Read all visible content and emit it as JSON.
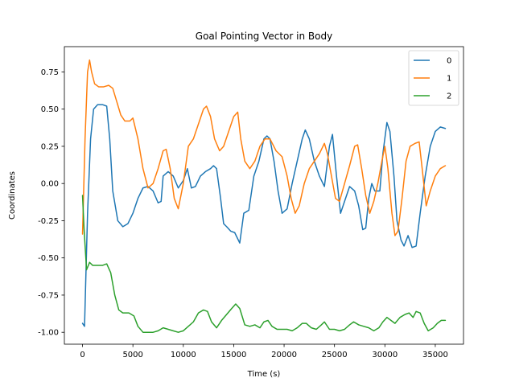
{
  "chart_data": {
    "type": "line",
    "title": "Goal Pointing Vector in Body",
    "xlabel": "Time (s)",
    "ylabel": "Coordinates",
    "xlim": [
      -1800,
      37800
    ],
    "ylim": [
      -1.08,
      0.92
    ],
    "xticks": [
      0,
      5000,
      10000,
      15000,
      20000,
      25000,
      30000,
      35000
    ],
    "yticks": [
      -1.0,
      -0.75,
      -0.5,
      -0.25,
      0.0,
      0.25,
      0.5,
      0.75
    ],
    "grid": false,
    "legend_position": "top-right",
    "series": [
      {
        "name": "0",
        "color": "#1f77b4",
        "points": [
          [
            0,
            -0.94
          ],
          [
            200,
            -0.96
          ],
          [
            500,
            -0.2
          ],
          [
            800,
            0.3
          ],
          [
            1100,
            0.5
          ],
          [
            1500,
            0.53
          ],
          [
            2000,
            0.53
          ],
          [
            2400,
            0.52
          ],
          [
            2700,
            0.3
          ],
          [
            3000,
            -0.05
          ],
          [
            3500,
            -0.25
          ],
          [
            4000,
            -0.29
          ],
          [
            4500,
            -0.27
          ],
          [
            5000,
            -0.2
          ],
          [
            5500,
            -0.1
          ],
          [
            6000,
            -0.03
          ],
          [
            6500,
            -0.02
          ],
          [
            7000,
            -0.05
          ],
          [
            7500,
            -0.13
          ],
          [
            7800,
            -0.12
          ],
          [
            8000,
            0.05
          ],
          [
            8500,
            0.08
          ],
          [
            9000,
            0.05
          ],
          [
            9500,
            -0.03
          ],
          [
            10000,
            0.02
          ],
          [
            10400,
            0.1
          ],
          [
            10800,
            -0.03
          ],
          [
            11200,
            -0.02
          ],
          [
            11700,
            0.05
          ],
          [
            12200,
            0.08
          ],
          [
            12700,
            0.1
          ],
          [
            13000,
            0.12
          ],
          [
            13300,
            0.1
          ],
          [
            13700,
            -0.1
          ],
          [
            14000,
            -0.27
          ],
          [
            14300,
            -0.29
          ],
          [
            14700,
            -0.32
          ],
          [
            15100,
            -0.33
          ],
          [
            15600,
            -0.4
          ],
          [
            16000,
            -0.2
          ],
          [
            16500,
            -0.18
          ],
          [
            17000,
            0.05
          ],
          [
            17500,
            0.15
          ],
          [
            18000,
            0.3
          ],
          [
            18300,
            0.32
          ],
          [
            18600,
            0.3
          ],
          [
            19000,
            0.15
          ],
          [
            19400,
            -0.05
          ],
          [
            19800,
            -0.2
          ],
          [
            20300,
            -0.17
          ],
          [
            20800,
            0.0
          ],
          [
            21300,
            0.15
          ],
          [
            21800,
            0.3
          ],
          [
            22100,
            0.36
          ],
          [
            22500,
            0.3
          ],
          [
            23000,
            0.15
          ],
          [
            23500,
            0.05
          ],
          [
            24000,
            -0.02
          ],
          [
            24500,
            0.25
          ],
          [
            24800,
            0.33
          ],
          [
            25200,
            0.05
          ],
          [
            25600,
            -0.2
          ],
          [
            26000,
            -0.12
          ],
          [
            26500,
            -0.02
          ],
          [
            27000,
            -0.05
          ],
          [
            27400,
            -0.15
          ],
          [
            27800,
            -0.31
          ],
          [
            28100,
            -0.3
          ],
          [
            28400,
            -0.1
          ],
          [
            28700,
            0.0
          ],
          [
            29000,
            -0.05
          ],
          [
            29500,
            -0.05
          ],
          [
            29800,
            0.2
          ],
          [
            30200,
            0.41
          ],
          [
            30500,
            0.35
          ],
          [
            30900,
            0.05
          ],
          [
            31200,
            -0.25
          ],
          [
            31600,
            -0.38
          ],
          [
            31900,
            -0.42
          ],
          [
            32300,
            -0.35
          ],
          [
            32700,
            -0.43
          ],
          [
            33100,
            -0.42
          ],
          [
            33500,
            -0.2
          ],
          [
            34000,
            0.05
          ],
          [
            34500,
            0.25
          ],
          [
            35000,
            0.35
          ],
          [
            35500,
            0.38
          ],
          [
            36000,
            0.37
          ]
        ]
      },
      {
        "name": "1",
        "color": "#ff7f0e",
        "points": [
          [
            0,
            -0.34
          ],
          [
            250,
            0.3
          ],
          [
            500,
            0.75
          ],
          [
            700,
            0.83
          ],
          [
            900,
            0.75
          ],
          [
            1200,
            0.67
          ],
          [
            1600,
            0.65
          ],
          [
            2100,
            0.65
          ],
          [
            2600,
            0.66
          ],
          [
            3000,
            0.64
          ],
          [
            3400,
            0.55
          ],
          [
            3800,
            0.46
          ],
          [
            4200,
            0.42
          ],
          [
            4700,
            0.42
          ],
          [
            5000,
            0.44
          ],
          [
            5500,
            0.3
          ],
          [
            6000,
            0.1
          ],
          [
            6500,
            -0.03
          ],
          [
            7000,
            0.0
          ],
          [
            7500,
            0.1
          ],
          [
            8000,
            0.22
          ],
          [
            8300,
            0.23
          ],
          [
            8700,
            0.1
          ],
          [
            9100,
            -0.1
          ],
          [
            9500,
            -0.17
          ],
          [
            10000,
            0.0
          ],
          [
            10500,
            0.25
          ],
          [
            11000,
            0.3
          ],
          [
            11500,
            0.4
          ],
          [
            12000,
            0.5
          ],
          [
            12300,
            0.52
          ],
          [
            12700,
            0.45
          ],
          [
            13100,
            0.3
          ],
          [
            13600,
            0.22
          ],
          [
            14000,
            0.25
          ],
          [
            14500,
            0.35
          ],
          [
            15000,
            0.45
          ],
          [
            15400,
            0.48
          ],
          [
            15700,
            0.3
          ],
          [
            16100,
            0.15
          ],
          [
            16600,
            0.1
          ],
          [
            17100,
            0.15
          ],
          [
            17600,
            0.25
          ],
          [
            18100,
            0.3
          ],
          [
            18600,
            0.3
          ],
          [
            19200,
            0.22
          ],
          [
            19800,
            0.18
          ],
          [
            20300,
            0.05
          ],
          [
            20700,
            -0.1
          ],
          [
            21100,
            -0.2
          ],
          [
            21500,
            -0.15
          ],
          [
            22000,
            0.0
          ],
          [
            22500,
            0.1
          ],
          [
            23000,
            0.15
          ],
          [
            23500,
            0.2
          ],
          [
            24000,
            0.27
          ],
          [
            24300,
            0.2
          ],
          [
            24700,
            0.05
          ],
          [
            25100,
            -0.1
          ],
          [
            25500,
            -0.12
          ],
          [
            26000,
            0.0
          ],
          [
            26500,
            0.12
          ],
          [
            27000,
            0.25
          ],
          [
            27300,
            0.26
          ],
          [
            27700,
            0.1
          ],
          [
            28100,
            -0.08
          ],
          [
            28500,
            -0.2
          ],
          [
            28900,
            -0.12
          ],
          [
            29300,
            0.0
          ],
          [
            29700,
            0.15
          ],
          [
            30000,
            0.25
          ],
          [
            30300,
            0.1
          ],
          [
            30700,
            -0.2
          ],
          [
            31000,
            -0.35
          ],
          [
            31300,
            -0.32
          ],
          [
            31700,
            -0.1
          ],
          [
            32100,
            0.15
          ],
          [
            32500,
            0.25
          ],
          [
            33000,
            0.27
          ],
          [
            33400,
            0.28
          ],
          [
            33700,
            0.1
          ],
          [
            34100,
            -0.15
          ],
          [
            34500,
            -0.05
          ],
          [
            35000,
            0.05
          ],
          [
            35500,
            0.1
          ],
          [
            36000,
            0.12
          ]
        ]
      },
      {
        "name": "2",
        "color": "#2ca02c",
        "points": [
          [
            0,
            -0.08
          ],
          [
            150,
            -0.3
          ],
          [
            400,
            -0.58
          ],
          [
            700,
            -0.53
          ],
          [
            1000,
            -0.55
          ],
          [
            1500,
            -0.55
          ],
          [
            2000,
            -0.55
          ],
          [
            2400,
            -0.54
          ],
          [
            2800,
            -0.6
          ],
          [
            3200,
            -0.75
          ],
          [
            3600,
            -0.85
          ],
          [
            4000,
            -0.87
          ],
          [
            4600,
            -0.87
          ],
          [
            5100,
            -0.89
          ],
          [
            5500,
            -0.96
          ],
          [
            6000,
            -1.0
          ],
          [
            6500,
            -1.0
          ],
          [
            7000,
            -1.0
          ],
          [
            7500,
            -0.99
          ],
          [
            8000,
            -0.97
          ],
          [
            8500,
            -0.98
          ],
          [
            9000,
            -0.99
          ],
          [
            9500,
            -1.0
          ],
          [
            10000,
            -0.99
          ],
          [
            10500,
            -0.96
          ],
          [
            11000,
            -0.93
          ],
          [
            11500,
            -0.87
          ],
          [
            12000,
            -0.85
          ],
          [
            12400,
            -0.86
          ],
          [
            12800,
            -0.93
          ],
          [
            13300,
            -0.97
          ],
          [
            13800,
            -0.92
          ],
          [
            14300,
            -0.88
          ],
          [
            14800,
            -0.84
          ],
          [
            15200,
            -0.81
          ],
          [
            15600,
            -0.84
          ],
          [
            16100,
            -0.95
          ],
          [
            16600,
            -0.96
          ],
          [
            17100,
            -0.95
          ],
          [
            17600,
            -0.97
          ],
          [
            18000,
            -0.93
          ],
          [
            18400,
            -0.92
          ],
          [
            18800,
            -0.96
          ],
          [
            19300,
            -0.98
          ],
          [
            19800,
            -0.98
          ],
          [
            20300,
            -0.98
          ],
          [
            20800,
            -0.99
          ],
          [
            21300,
            -0.97
          ],
          [
            21800,
            -0.94
          ],
          [
            22200,
            -0.94
          ],
          [
            22700,
            -0.97
          ],
          [
            23200,
            -0.98
          ],
          [
            23700,
            -0.95
          ],
          [
            24000,
            -0.93
          ],
          [
            24500,
            -0.98
          ],
          [
            25000,
            -0.98
          ],
          [
            25500,
            -0.99
          ],
          [
            26000,
            -0.98
          ],
          [
            26500,
            -0.95
          ],
          [
            26900,
            -0.93
          ],
          [
            27400,
            -0.95
          ],
          [
            27900,
            -0.96
          ],
          [
            28400,
            -0.97
          ],
          [
            28900,
            -0.99
          ],
          [
            29400,
            -0.97
          ],
          [
            29800,
            -0.93
          ],
          [
            30200,
            -0.9
          ],
          [
            30600,
            -0.92
          ],
          [
            31000,
            -0.94
          ],
          [
            31500,
            -0.9
          ],
          [
            32000,
            -0.88
          ],
          [
            32400,
            -0.87
          ],
          [
            32800,
            -0.9
          ],
          [
            33100,
            -0.86
          ],
          [
            33500,
            -0.87
          ],
          [
            33900,
            -0.94
          ],
          [
            34300,
            -0.99
          ],
          [
            34800,
            -0.97
          ],
          [
            35200,
            -0.94
          ],
          [
            35600,
            -0.92
          ],
          [
            36000,
            -0.92
          ]
        ]
      }
    ]
  }
}
